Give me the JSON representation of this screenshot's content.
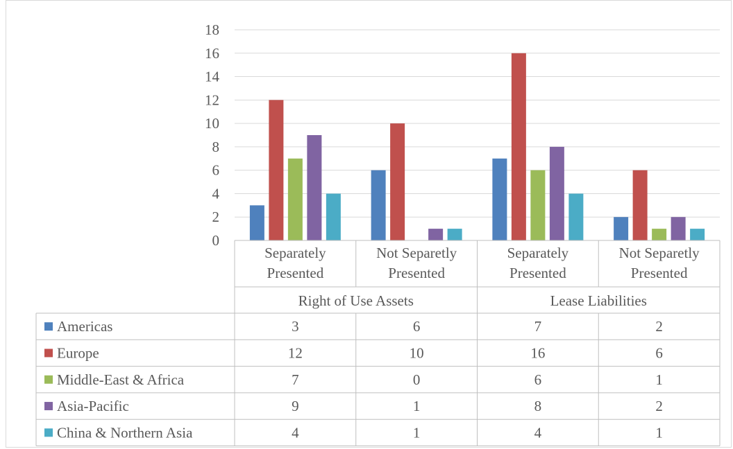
{
  "chart_data": {
    "type": "bar",
    "groups": [
      "Right of Use Assets",
      "Lease Liabilities"
    ],
    "categories": [
      "Separately Presented",
      "Not Separetly Presented",
      "Separately Presented",
      "Not Separetly Presented"
    ],
    "category_lines": [
      [
        "Separately",
        "Presented"
      ],
      [
        "Not Separetly",
        "Presented"
      ],
      [
        "Separately",
        "Presented"
      ],
      [
        "Not Separetly",
        "Presented"
      ]
    ],
    "series": [
      {
        "name": "Americas",
        "color": "#4f81bd",
        "values": [
          3,
          6,
          7,
          2
        ]
      },
      {
        "name": "Europe",
        "color": "#c0504d",
        "values": [
          12,
          10,
          16,
          6
        ]
      },
      {
        "name": "Middle-East & Africa",
        "color": "#9bbb59",
        "values": [
          7,
          0,
          6,
          1
        ]
      },
      {
        "name": "Asia-Pacific",
        "color": "#8064a2",
        "values": [
          9,
          1,
          8,
          2
        ]
      },
      {
        "name": "China & Northern Asia",
        "color": "#4bacc6",
        "values": [
          4,
          1,
          4,
          1
        ]
      }
    ],
    "ylim": [
      0,
      18
    ],
    "yticks": [
      0,
      2,
      4,
      6,
      8,
      10,
      12,
      14,
      16,
      18
    ],
    "grid": true,
    "legend": "data-table"
  }
}
